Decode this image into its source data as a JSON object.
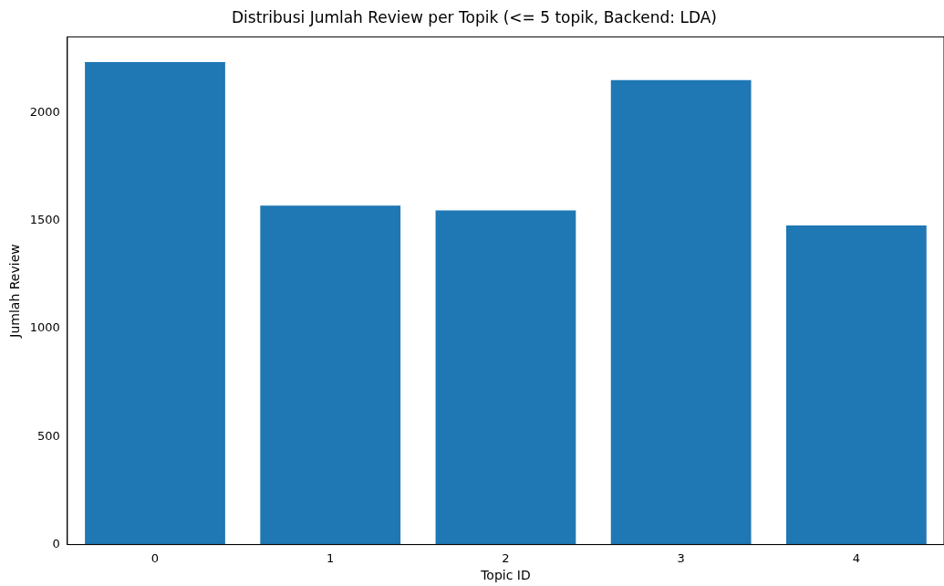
{
  "chart_data": {
    "type": "bar",
    "title": "Distribusi Jumlah Review per Topik (<= 5 topik, Backend: LDA)",
    "xlabel": "Topic ID",
    "ylabel": "Jumlah Review",
    "categories": [
      "0",
      "1",
      "2",
      "3",
      "4"
    ],
    "values": [
      2235,
      1570,
      1548,
      2152,
      1478
    ],
    "color": "#1f77b4",
    "ylim": [
      0,
      2352
    ],
    "yticks": [
      0,
      500,
      1000,
      1500,
      2000
    ],
    "grid": false,
    "legend": false
  }
}
